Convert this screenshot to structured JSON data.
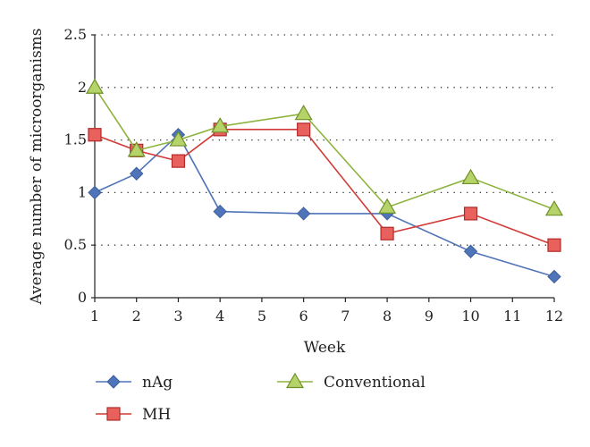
{
  "chart_data": {
    "type": "line",
    "title": "",
    "xlabel": "Week",
    "ylabel": "Average number of microorganisms",
    "xlim": [
      1,
      12
    ],
    "ylim": [
      0,
      2.5
    ],
    "xticks": [
      "1",
      "2",
      "3",
      "4",
      "5",
      "6",
      "7",
      "8",
      "9",
      "10",
      "11",
      "12"
    ],
    "yticks": [
      "0",
      "0.5",
      "1",
      "1.5",
      "2",
      "2.5"
    ],
    "grid": "horizontal-dotted",
    "legend_position": "bottom",
    "series": [
      {
        "name": "nAg",
        "color": "#4f74b9",
        "marker": "diamond",
        "points": [
          [
            1,
            1.0
          ],
          [
            2,
            1.18
          ],
          [
            3,
            1.55
          ],
          [
            4,
            0.82
          ],
          [
            6,
            0.8
          ],
          [
            8,
            0.8
          ],
          [
            10,
            0.44
          ],
          [
            12,
            0.2
          ]
        ]
      },
      {
        "name": "MH",
        "color": "#d13a37",
        "marker": "square",
        "points": [
          [
            1,
            1.55
          ],
          [
            2,
            1.4
          ],
          [
            3,
            1.3
          ],
          [
            4,
            1.6
          ],
          [
            6,
            1.6
          ],
          [
            8,
            0.61
          ],
          [
            10,
            0.8
          ],
          [
            12,
            0.5
          ]
        ]
      },
      {
        "name": "Conventional",
        "color": "#8db43e",
        "marker": "triangle",
        "points": [
          [
            1,
            2.0
          ],
          [
            2,
            1.4
          ],
          [
            3,
            1.5
          ],
          [
            4,
            1.63
          ],
          [
            6,
            1.75
          ],
          [
            8,
            0.86
          ],
          [
            10,
            1.14
          ],
          [
            12,
            0.84
          ]
        ]
      }
    ]
  }
}
